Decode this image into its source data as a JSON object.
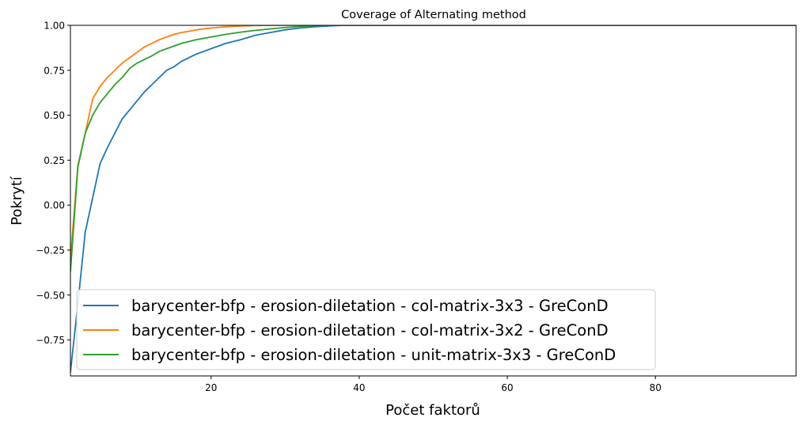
{
  "chart_data": {
    "type": "line",
    "title": "Coverage of Alternating method",
    "xlabel": "Počet faktorů",
    "ylabel": "Pokrytí",
    "xlim": [
      1,
      99
    ],
    "ylim": [
      -0.95,
      1.0
    ],
    "xticks": [
      20,
      40,
      60,
      80
    ],
    "xtick_labels": [
      "20",
      "40",
      "60",
      "80"
    ],
    "yticks": [
      1.0,
      0.75,
      0.5,
      0.25,
      0.0,
      -0.25,
      -0.5,
      -0.75
    ],
    "ytick_labels": [
      "1.00",
      "0.75",
      "0.50",
      "0.25",
      "0.00",
      "−0.25",
      "−0.50",
      "−0.75"
    ],
    "grid": false,
    "legend_position": "bottom-left",
    "series": [
      {
        "name": "barycenter-bfp - erosion-diletation - col-matrix-3x3 - GreConD",
        "color": "#1f77b4",
        "x": [
          1,
          2,
          3,
          4,
          5,
          6,
          7,
          8,
          9,
          10,
          11,
          12,
          13,
          14,
          15,
          16,
          17,
          18,
          20,
          22,
          24,
          26,
          28,
          30,
          32,
          34,
          36,
          38,
          40,
          99
        ],
        "y": [
          -0.93,
          -0.55,
          -0.15,
          0.04,
          0.23,
          0.32,
          0.4,
          0.48,
          0.53,
          0.58,
          0.63,
          0.67,
          0.71,
          0.75,
          0.77,
          0.8,
          0.82,
          0.84,
          0.87,
          0.9,
          0.92,
          0.945,
          0.96,
          0.975,
          0.985,
          0.992,
          0.997,
          1.0,
          1.0,
          1.0
        ]
      },
      {
        "name": "barycenter-bfp - erosion-diletation - col-matrix-3x2 - GreConD",
        "color": "#ff7f0e",
        "x": [
          1,
          2,
          3,
          4,
          5,
          6,
          7,
          8,
          9,
          10,
          11,
          12,
          13,
          14,
          15,
          16,
          17,
          18,
          20,
          22,
          24,
          26,
          28,
          30,
          99
        ],
        "y": [
          -0.3,
          0.22,
          0.4,
          0.59,
          0.66,
          0.71,
          0.75,
          0.79,
          0.82,
          0.85,
          0.88,
          0.9,
          0.92,
          0.935,
          0.95,
          0.96,
          0.967,
          0.975,
          0.985,
          0.992,
          0.996,
          0.999,
          1.0,
          1.0,
          1.0
        ]
      },
      {
        "name": "barycenter-bfp - erosion-diletation - unit-matrix-3x3 - GreConD",
        "color": "#2ca02c",
        "x": [
          1,
          2,
          3,
          4,
          5,
          6,
          7,
          8,
          9,
          10,
          11,
          12,
          13,
          14,
          15,
          16,
          17,
          18,
          20,
          22,
          24,
          26,
          28,
          30,
          32,
          34,
          36,
          99
        ],
        "y": [
          -0.37,
          0.21,
          0.4,
          0.5,
          0.57,
          0.62,
          0.67,
          0.71,
          0.76,
          0.79,
          0.81,
          0.83,
          0.855,
          0.87,
          0.885,
          0.9,
          0.91,
          0.92,
          0.935,
          0.95,
          0.962,
          0.972,
          0.98,
          0.988,
          0.994,
          0.998,
          1.0,
          1.0
        ]
      }
    ]
  }
}
